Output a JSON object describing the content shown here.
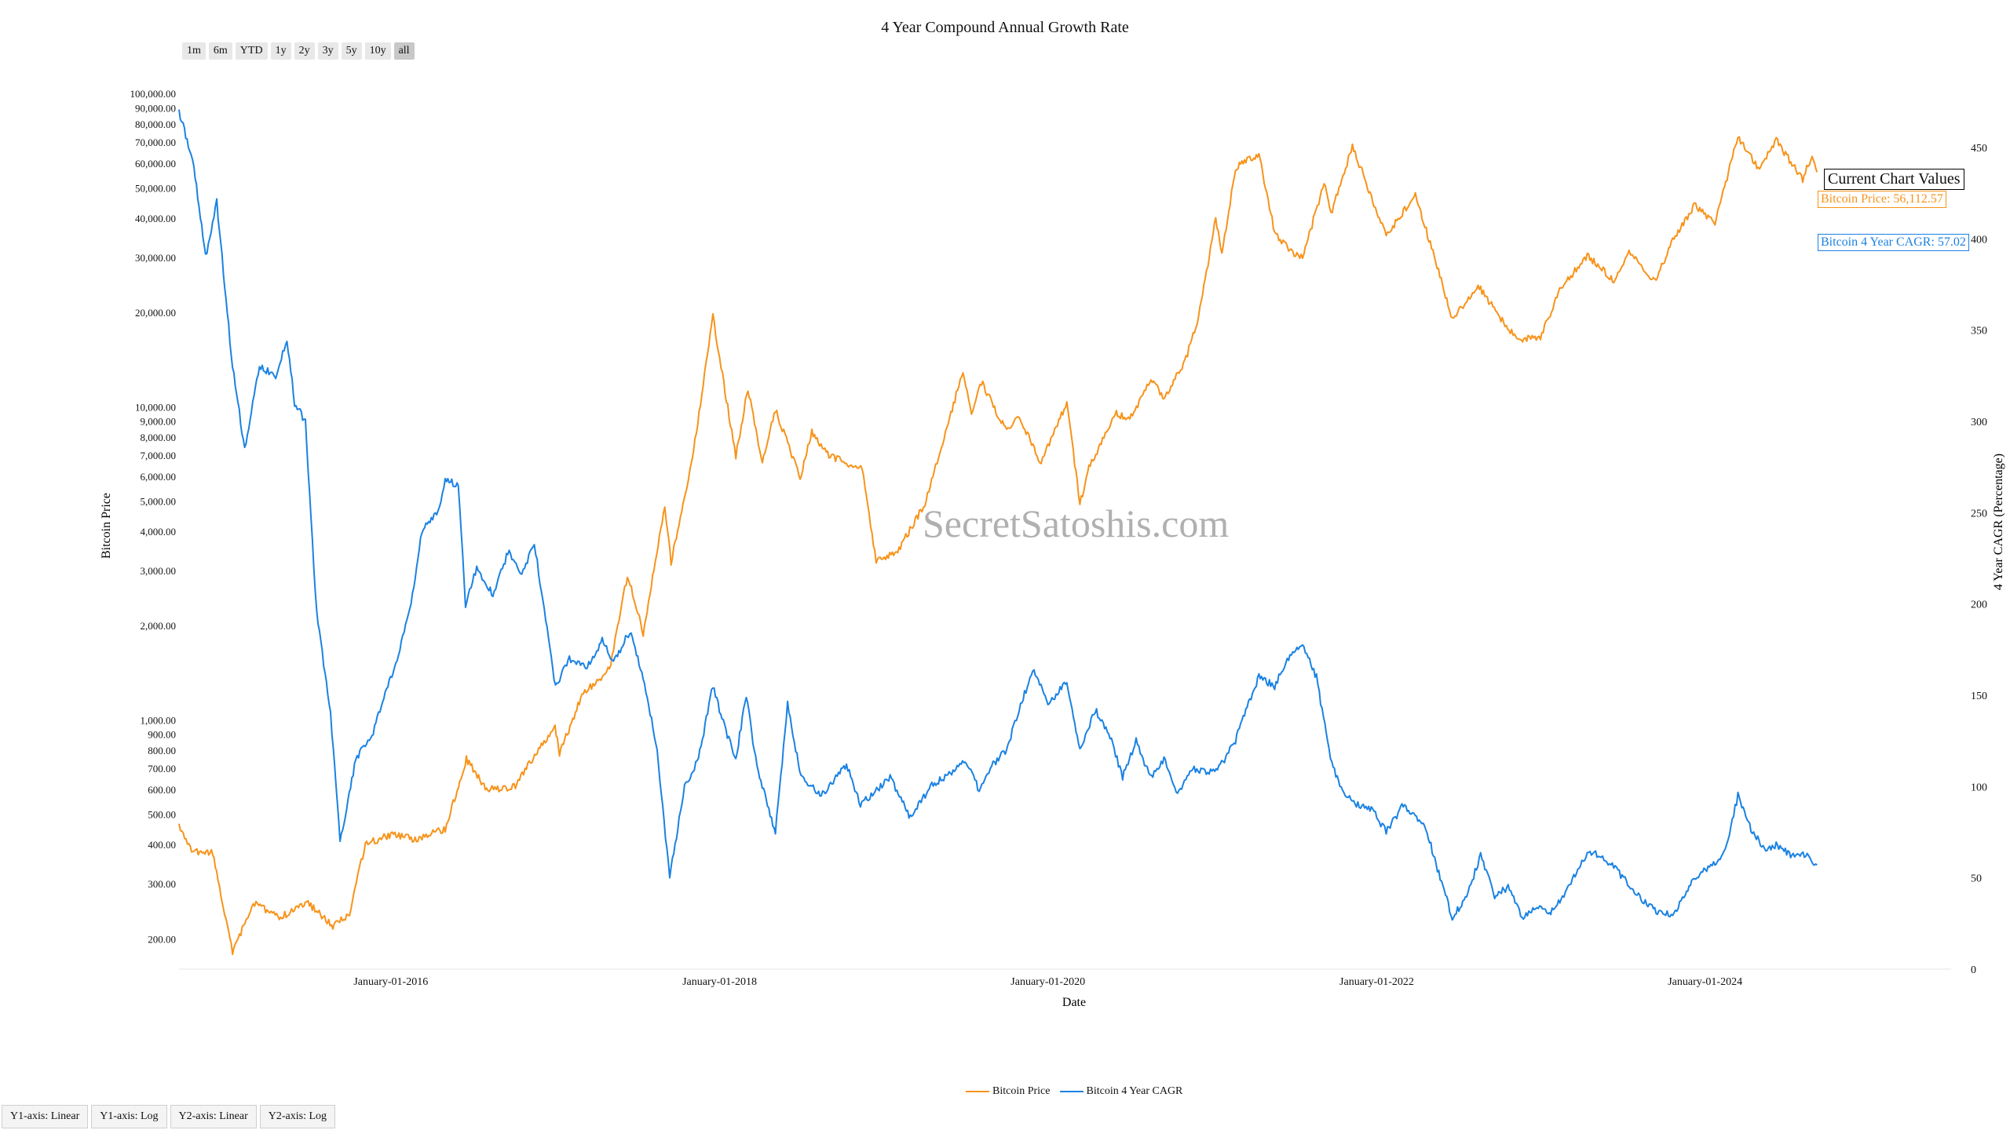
{
  "range_buttons": [
    "1m",
    "6m",
    "YTD",
    "1y",
    "2y",
    "3y",
    "5y",
    "10y",
    "all"
  ],
  "active_range": "all",
  "axis_buttons": [
    "Y1-axis: Linear",
    "Y1-axis: Log",
    "Y2-axis: Linear",
    "Y2-axis: Log"
  ],
  "watermark": "SecretSatoshis.com",
  "current_values": {
    "title": "Current Chart Values",
    "price_text": "Bitcoin Price: 56,112.57",
    "cagr_text": "Bitcoin 4 Year CAGR: 57.02"
  },
  "colors": {
    "price": "#f7931a",
    "cagr": "#1a82e2"
  },
  "chart_data": {
    "type": "line",
    "title": "4 Year Compound Annual Growth Rate",
    "xlabel": "Date",
    "y1label": "Bitcoin Price",
    "y2label": "4 Year CAGR (Percentage)",
    "y1_scale": "log",
    "y1_range": [
      160,
      115000
    ],
    "y2_range": [
      0,
      490
    ],
    "x_range": [
      "2014-09-17",
      "2025-07-01"
    ],
    "x_ticks": [
      {
        "date": "2016-01-01",
        "label": "January-01-2016"
      },
      {
        "date": "2018-01-01",
        "label": "January-01-2018"
      },
      {
        "date": "2020-01-01",
        "label": "January-01-2020"
      },
      {
        "date": "2022-01-01",
        "label": "January-01-2022"
      },
      {
        "date": "2024-01-01",
        "label": "January-01-2024"
      }
    ],
    "y1_ticks": [
      {
        "v": 200,
        "label": "200.00"
      },
      {
        "v": 300,
        "label": "300.00"
      },
      {
        "v": 400,
        "label": "400.00"
      },
      {
        "v": 500,
        "label": "500.00"
      },
      {
        "v": 600,
        "label": "600.00"
      },
      {
        "v": 700,
        "label": "700.00"
      },
      {
        "v": 800,
        "label": "800.00"
      },
      {
        "v": 900,
        "label": "900.00"
      },
      {
        "v": 1000,
        "label": "1,000.00"
      },
      {
        "v": 2000,
        "label": "2,000.00"
      },
      {
        "v": 3000,
        "label": "3,000.00"
      },
      {
        "v": 4000,
        "label": "4,000.00"
      },
      {
        "v": 5000,
        "label": "5,000.00"
      },
      {
        "v": 6000,
        "label": "6,000.00"
      },
      {
        "v": 7000,
        "label": "7,000.00"
      },
      {
        "v": 8000,
        "label": "8,000.00"
      },
      {
        "v": 9000,
        "label": "9,000.00"
      },
      {
        "v": 10000,
        "label": "10,000.00"
      },
      {
        "v": 20000,
        "label": "20,000.00"
      },
      {
        "v": 30000,
        "label": "30,000.00"
      },
      {
        "v": 40000,
        "label": "40,000.00"
      },
      {
        "v": 50000,
        "label": "50,000.00"
      },
      {
        "v": 60000,
        "label": "60,000.00"
      },
      {
        "v": 70000,
        "label": "70,000.00"
      },
      {
        "v": 80000,
        "label": "80,000.00"
      },
      {
        "v": 90000,
        "label": "90,000.00"
      },
      {
        "v": 100000,
        "label": "100,000.00"
      }
    ],
    "y2_ticks": [
      0,
      50,
      100,
      150,
      200,
      250,
      300,
      350,
      400,
      450
    ],
    "legend_position": "bottom-center",
    "series": [
      {
        "name": "Bitcoin Price",
        "axis": "y1",
        "color": "#f7931a",
        "points": [
          [
            "2014-09-17",
            460
          ],
          [
            "2014-10-15",
            380
          ],
          [
            "2014-12-01",
            375
          ],
          [
            "2015-01-14",
            180
          ],
          [
            "2015-03-01",
            260
          ],
          [
            "2015-05-01",
            235
          ],
          [
            "2015-07-01",
            260
          ],
          [
            "2015-08-25",
            220
          ],
          [
            "2015-10-01",
            240
          ],
          [
            "2015-11-05",
            400
          ],
          [
            "2016-01-01",
            430
          ],
          [
            "2016-03-01",
            415
          ],
          [
            "2016-05-01",
            450
          ],
          [
            "2016-06-17",
            750
          ],
          [
            "2016-08-01",
            600
          ],
          [
            "2016-10-01",
            610
          ],
          [
            "2016-12-31",
            960
          ],
          [
            "2017-01-10",
            780
          ],
          [
            "2017-03-01",
            1200
          ],
          [
            "2017-05-01",
            1450
          ],
          [
            "2017-06-10",
            2900
          ],
          [
            "2017-07-15",
            1900
          ],
          [
            "2017-09-01",
            4800
          ],
          [
            "2017-09-15",
            3200
          ],
          [
            "2017-11-01",
            6700
          ],
          [
            "2017-12-17",
            19500
          ],
          [
            "2018-02-06",
            6900
          ],
          [
            "2018-03-05",
            11500
          ],
          [
            "2018-04-06",
            6600
          ],
          [
            "2018-05-05",
            9800
          ],
          [
            "2018-06-29",
            5900
          ],
          [
            "2018-07-25",
            8300
          ],
          [
            "2018-09-01",
            7000
          ],
          [
            "2018-11-14",
            6300
          ],
          [
            "2018-12-15",
            3200
          ],
          [
            "2019-02-01",
            3450
          ],
          [
            "2019-04-02",
            4900
          ],
          [
            "2019-05-15",
            8000
          ],
          [
            "2019-06-26",
            13000
          ],
          [
            "2019-07-15",
            9500
          ],
          [
            "2019-08-06",
            12000
          ],
          [
            "2019-10-01",
            8300
          ],
          [
            "2019-10-26",
            9500
          ],
          [
            "2019-12-17",
            6600
          ],
          [
            "2020-02-12",
            10300
          ],
          [
            "2020-03-12",
            4900
          ],
          [
            "2020-04-01",
            6400
          ],
          [
            "2020-06-01",
            9500
          ],
          [
            "2020-07-01",
            9100
          ],
          [
            "2020-08-17",
            12300
          ],
          [
            "2020-09-15",
            10700
          ],
          [
            "2020-10-31",
            13800
          ],
          [
            "2020-12-01",
            19300
          ],
          [
            "2021-01-08",
            40000
          ],
          [
            "2021-01-22",
            31000
          ],
          [
            "2021-02-21",
            57000
          ],
          [
            "2021-03-13",
            61200
          ],
          [
            "2021-04-14",
            64000
          ],
          [
            "2021-05-19",
            36000
          ],
          [
            "2021-06-22",
            31500
          ],
          [
            "2021-07-20",
            29800
          ],
          [
            "2021-09-06",
            52000
          ],
          [
            "2021-09-21",
            41000
          ],
          [
            "2021-11-08",
            68000
          ],
          [
            "2022-01-22",
            35000
          ],
          [
            "2022-03-28",
            47500
          ],
          [
            "2022-05-09",
            30000
          ],
          [
            "2022-06-18",
            19000
          ],
          [
            "2022-08-14",
            24500
          ],
          [
            "2022-10-01",
            19300
          ],
          [
            "2022-11-09",
            16500
          ],
          [
            "2022-12-31",
            16600
          ],
          [
            "2023-02-15",
            24000
          ],
          [
            "2023-04-14",
            30500
          ],
          [
            "2023-06-15",
            25000
          ],
          [
            "2023-07-13",
            31400
          ],
          [
            "2023-09-11",
            25200
          ],
          [
            "2023-10-24",
            34500
          ],
          [
            "2023-12-08",
            44000
          ],
          [
            "2024-01-23",
            38500
          ],
          [
            "2024-03-14",
            73000
          ],
          [
            "2024-05-01",
            57000
          ],
          [
            "2024-06-07",
            71000
          ],
          [
            "2024-08-05",
            53000
          ],
          [
            "2024-08-26",
            64000
          ],
          [
            "2024-09-06",
            56112
          ]
        ]
      },
      {
        "name": "Bitcoin 4 Year CAGR",
        "axis": "y2",
        "color": "#1a82e2",
        "points": [
          [
            "2014-09-17",
            470
          ],
          [
            "2014-10-20",
            440
          ],
          [
            "2014-11-15",
            390
          ],
          [
            "2014-12-10",
            420
          ],
          [
            "2015-01-14",
            330
          ],
          [
            "2015-02-10",
            285
          ],
          [
            "2015-03-15",
            330
          ],
          [
            "2015-04-20",
            325
          ],
          [
            "2015-05-15",
            345
          ],
          [
            "2015-06-01",
            310
          ],
          [
            "2015-06-25",
            300
          ],
          [
            "2015-07-20",
            195
          ],
          [
            "2015-08-20",
            140
          ],
          [
            "2015-09-10",
            70
          ],
          [
            "2015-10-15",
            115
          ],
          [
            "2015-11-20",
            128
          ],
          [
            "2016-01-15",
            170
          ],
          [
            "2016-02-15",
            200
          ],
          [
            "2016-03-10",
            240
          ],
          [
            "2016-04-15",
            250
          ],
          [
            "2016-05-01",
            268
          ],
          [
            "2016-05-30",
            265
          ],
          [
            "2016-06-15",
            200
          ],
          [
            "2016-07-10",
            220
          ],
          [
            "2016-08-15",
            205
          ],
          [
            "2016-09-20",
            230
          ],
          [
            "2016-10-15",
            215
          ],
          [
            "2016-11-15",
            233
          ],
          [
            "2016-12-01",
            207
          ],
          [
            "2017-01-01",
            155
          ],
          [
            "2017-02-01",
            170
          ],
          [
            "2017-03-10",
            165
          ],
          [
            "2017-04-15",
            180
          ],
          [
            "2017-05-10",
            168
          ],
          [
            "2017-06-15",
            185
          ],
          [
            "2017-07-15",
            160
          ],
          [
            "2017-08-15",
            120
          ],
          [
            "2017-09-12",
            50
          ],
          [
            "2017-10-15",
            100
          ],
          [
            "2017-11-15",
            115
          ],
          [
            "2017-12-17",
            155
          ],
          [
            "2018-01-15",
            130
          ],
          [
            "2018-02-06",
            115
          ],
          [
            "2018-03-01",
            150
          ],
          [
            "2018-03-25",
            110
          ],
          [
            "2018-05-05",
            75
          ],
          [
            "2018-06-01",
            145
          ],
          [
            "2018-07-01",
            105
          ],
          [
            "2018-08-15",
            95
          ],
          [
            "2018-10-10",
            112
          ],
          [
            "2018-11-10",
            90
          ],
          [
            "2019-01-15",
            105
          ],
          [
            "2019-03-01",
            83
          ],
          [
            "2019-04-15",
            100
          ],
          [
            "2019-06-01",
            108
          ],
          [
            "2019-07-01",
            115
          ],
          [
            "2019-08-01",
            98
          ],
          [
            "2019-09-01",
            112
          ],
          [
            "2019-10-01",
            120
          ],
          [
            "2019-11-01",
            145
          ],
          [
            "2019-12-01",
            164
          ],
          [
            "2020-01-01",
            145
          ],
          [
            "2020-02-12",
            158
          ],
          [
            "2020-03-12",
            120
          ],
          [
            "2020-04-15",
            142
          ],
          [
            "2020-05-15",
            130
          ],
          [
            "2020-06-15",
            105
          ],
          [
            "2020-07-15",
            125
          ],
          [
            "2020-08-15",
            105
          ],
          [
            "2020-09-15",
            115
          ],
          [
            "2020-10-15",
            95
          ],
          [
            "2020-11-15",
            110
          ],
          [
            "2020-12-15",
            108
          ],
          [
            "2021-01-15",
            110
          ],
          [
            "2021-02-21",
            125
          ],
          [
            "2021-03-13",
            140
          ],
          [
            "2021-04-14",
            160
          ],
          [
            "2021-05-19",
            155
          ],
          [
            "2021-06-22",
            172
          ],
          [
            "2021-07-20",
            178
          ],
          [
            "2021-08-20",
            160
          ],
          [
            "2021-09-20",
            115
          ],
          [
            "2021-10-20",
            95
          ],
          [
            "2021-11-20",
            90
          ],
          [
            "2021-12-20",
            88
          ],
          [
            "2022-01-22",
            75
          ],
          [
            "2022-03-01",
            90
          ],
          [
            "2022-04-20",
            78
          ],
          [
            "2022-05-10",
            60
          ],
          [
            "2022-06-18",
            28
          ],
          [
            "2022-07-20",
            40
          ],
          [
            "2022-08-20",
            62
          ],
          [
            "2022-09-20",
            40
          ],
          [
            "2022-10-20",
            45
          ],
          [
            "2022-11-20",
            28
          ],
          [
            "2022-12-20",
            34
          ],
          [
            "2023-01-20",
            30
          ],
          [
            "2023-02-15",
            38
          ],
          [
            "2023-03-15",
            50
          ],
          [
            "2023-04-14",
            64
          ],
          [
            "2023-05-15",
            62
          ],
          [
            "2023-06-15",
            55
          ],
          [
            "2023-07-13",
            47
          ],
          [
            "2023-08-15",
            38
          ],
          [
            "2023-09-11",
            32
          ],
          [
            "2023-10-24",
            30
          ],
          [
            "2023-11-15",
            40
          ],
          [
            "2023-12-08",
            50
          ],
          [
            "2024-01-23",
            58
          ],
          [
            "2024-02-15",
            65
          ],
          [
            "2024-03-14",
            95
          ],
          [
            "2024-04-15",
            75
          ],
          [
            "2024-05-15",
            65
          ],
          [
            "2024-06-07",
            68
          ],
          [
            "2024-07-15",
            62
          ],
          [
            "2024-08-15",
            63
          ],
          [
            "2024-09-06",
            57.02
          ]
        ]
      }
    ]
  }
}
